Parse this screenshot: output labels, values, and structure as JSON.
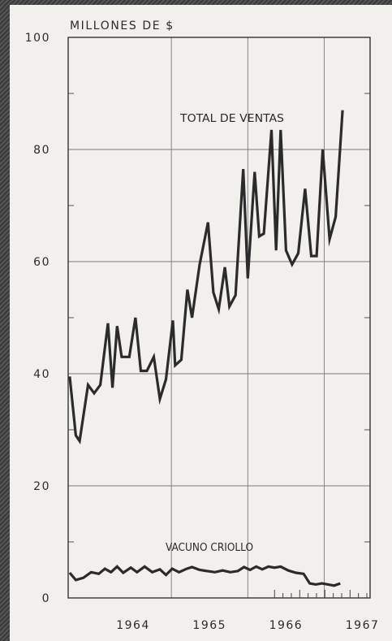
{
  "chart_data": {
    "type": "line",
    "unit_label": "MILLONES DE $",
    "ylim": [
      0,
      100
    ],
    "yticks": [
      "0",
      "20",
      "40",
      "60",
      "80",
      "100"
    ],
    "xlim": [
      1963.6,
      1967.55
    ],
    "xticks": [
      {
        "label": "1964",
        "x": 1964.0
      },
      {
        "label": "1965",
        "x": 1965.0
      },
      {
        "label": "1966",
        "x": 1966.0
      },
      {
        "label": "1967",
        "x": 1967.0
      }
    ],
    "grid": true,
    "series": [
      {
        "name": "TOTAL DE VENTAS",
        "color": "#2b2b2b",
        "points": [
          [
            1963.62,
            39.5
          ],
          [
            1963.7,
            29
          ],
          [
            1963.75,
            28
          ],
          [
            1963.86,
            38
          ],
          [
            1963.94,
            36.5
          ],
          [
            1964.02,
            38
          ],
          [
            1964.12,
            49
          ],
          [
            1964.18,
            37.5
          ],
          [
            1964.24,
            48.5
          ],
          [
            1964.3,
            43
          ],
          [
            1964.4,
            43
          ],
          [
            1964.48,
            50
          ],
          [
            1964.55,
            40.5
          ],
          [
            1964.63,
            40.5
          ],
          [
            1964.72,
            43
          ],
          [
            1964.8,
            35.5
          ],
          [
            1964.88,
            39
          ],
          [
            1964.97,
            49.5
          ],
          [
            1965.0,
            41.5
          ],
          [
            1965.08,
            42.5
          ],
          [
            1965.16,
            55
          ],
          [
            1965.22,
            50
          ],
          [
            1965.32,
            59.5
          ],
          [
            1965.43,
            67
          ],
          [
            1965.5,
            54.5
          ],
          [
            1965.57,
            51.5
          ],
          [
            1965.65,
            59
          ],
          [
            1965.71,
            52
          ],
          [
            1965.79,
            54
          ],
          [
            1965.89,
            76.5
          ],
          [
            1965.95,
            57
          ],
          [
            1966.04,
            76
          ],
          [
            1966.1,
            64.5
          ],
          [
            1966.16,
            65
          ],
          [
            1966.26,
            83.5
          ],
          [
            1966.32,
            62
          ],
          [
            1966.38,
            83.5
          ],
          [
            1966.45,
            62
          ],
          [
            1966.53,
            59.5
          ],
          [
            1966.61,
            61.5
          ],
          [
            1966.7,
            73
          ],
          [
            1966.78,
            61
          ],
          [
            1966.85,
            61
          ],
          [
            1966.93,
            80
          ],
          [
            1967.02,
            64
          ],
          [
            1967.1,
            68
          ],
          [
            1967.19,
            87
          ]
        ]
      },
      {
        "name": "VACUNO CRIOLLO",
        "color": "#2b2b2b",
        "points": [
          [
            1963.62,
            4.5
          ],
          [
            1963.7,
            3.2
          ],
          [
            1963.8,
            3.6
          ],
          [
            1963.9,
            4.6
          ],
          [
            1964.0,
            4.3
          ],
          [
            1964.08,
            5.2
          ],
          [
            1964.16,
            4.6
          ],
          [
            1964.24,
            5.6
          ],
          [
            1964.32,
            4.5
          ],
          [
            1964.42,
            5.4
          ],
          [
            1964.5,
            4.6
          ],
          [
            1964.6,
            5.6
          ],
          [
            1964.7,
            4.6
          ],
          [
            1964.8,
            5.1
          ],
          [
            1964.88,
            4.1
          ],
          [
            1964.96,
            5.2
          ],
          [
            1965.05,
            4.6
          ],
          [
            1965.15,
            5.2
          ],
          [
            1965.22,
            5.5
          ],
          [
            1965.32,
            5.0
          ],
          [
            1965.42,
            4.8
          ],
          [
            1965.52,
            4.6
          ],
          [
            1965.62,
            4.9
          ],
          [
            1965.72,
            4.6
          ],
          [
            1965.82,
            4.8
          ],
          [
            1965.9,
            5.5
          ],
          [
            1965.98,
            5.0
          ],
          [
            1966.06,
            5.6
          ],
          [
            1966.14,
            5.1
          ],
          [
            1966.22,
            5.6
          ],
          [
            1966.3,
            5.4
          ],
          [
            1966.38,
            5.6
          ],
          [
            1966.48,
            4.9
          ],
          [
            1966.58,
            4.5
          ],
          [
            1966.68,
            4.3
          ],
          [
            1966.76,
            2.6
          ],
          [
            1966.84,
            2.4
          ],
          [
            1966.92,
            2.6
          ],
          [
            1967.0,
            2.4
          ],
          [
            1967.08,
            2.2
          ],
          [
            1967.16,
            2.6
          ]
        ]
      }
    ]
  }
}
